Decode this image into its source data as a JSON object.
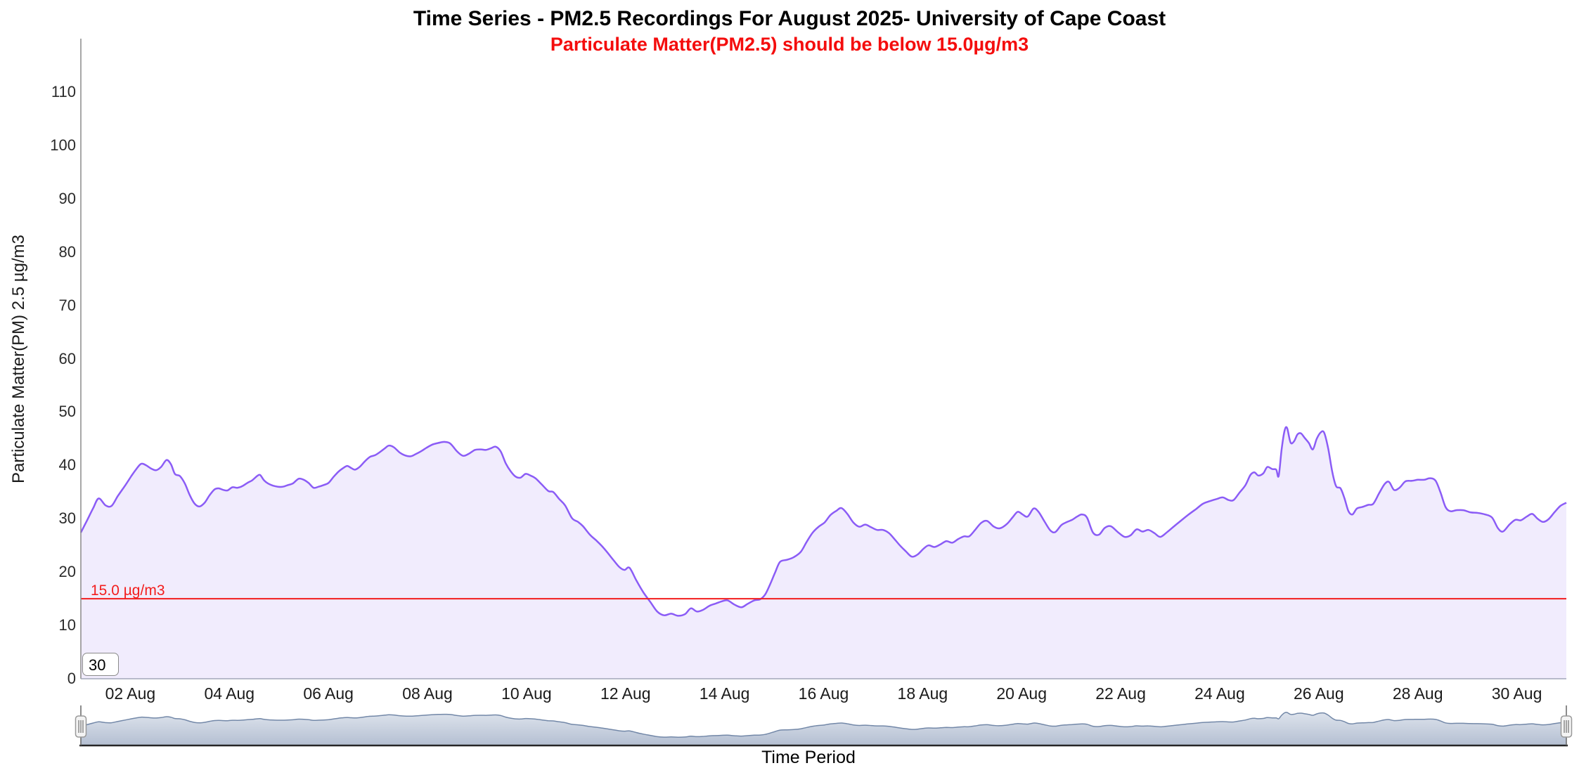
{
  "chart_data": {
    "type": "area",
    "title": "Time Series - PM2.5 Recordings For August 2025- University of Cape Coast",
    "subtitle": "Particulate Matter(PM2.5) should be below 15.0µg/m3",
    "xlabel": "Time Period",
    "ylabel": "Particulate Matter(PM) 2.5 µg/m3",
    "x_unit": "day of August 2025",
    "ylim": [
      0,
      120
    ],
    "xlim_days": [
      1,
      31
    ],
    "grid": false,
    "legend": "none",
    "yticks": [
      0,
      10,
      20,
      30,
      40,
      50,
      60,
      70,
      80,
      90,
      100,
      110
    ],
    "xticks": [
      {
        "day": 2,
        "label": "02 Aug"
      },
      {
        "day": 4,
        "label": "04 Aug"
      },
      {
        "day": 6,
        "label": "06 Aug"
      },
      {
        "day": 8,
        "label": "08 Aug"
      },
      {
        "day": 10,
        "label": "10 Aug"
      },
      {
        "day": 12,
        "label": "12 Aug"
      },
      {
        "day": 14,
        "label": "14 Aug"
      },
      {
        "day": 16,
        "label": "16 Aug"
      },
      {
        "day": 18,
        "label": "18 Aug"
      },
      {
        "day": 20,
        "label": "20 Aug"
      },
      {
        "day": 22,
        "label": "22 Aug"
      },
      {
        "day": 24,
        "label": "24 Aug"
      },
      {
        "day": 26,
        "label": "26 Aug"
      },
      {
        "day": 28,
        "label": "28 Aug"
      },
      {
        "day": 30,
        "label": "30 Aug"
      }
    ],
    "plotline": {
      "value": 15.0,
      "label": "15.0 µg/m3"
    },
    "series": [
      {
        "name": "PM2.5",
        "points": [
          [
            1.0,
            27.4
          ],
          [
            1.12,
            29.6
          ],
          [
            1.25,
            32.0
          ],
          [
            1.36,
            33.8
          ],
          [
            1.5,
            32.5
          ],
          [
            1.62,
            32.4
          ],
          [
            1.75,
            34.3
          ],
          [
            1.9,
            36.3
          ],
          [
            2.02,
            38.0
          ],
          [
            2.12,
            39.3
          ],
          [
            2.22,
            40.3
          ],
          [
            2.32,
            40.0
          ],
          [
            2.42,
            39.4
          ],
          [
            2.52,
            39.1
          ],
          [
            2.62,
            39.7
          ],
          [
            2.73,
            41.0
          ],
          [
            2.82,
            40.2
          ],
          [
            2.9,
            38.4
          ],
          [
            3.0,
            38.0
          ],
          [
            3.1,
            36.6
          ],
          [
            3.2,
            34.4
          ],
          [
            3.3,
            32.8
          ],
          [
            3.4,
            32.3
          ],
          [
            3.5,
            33.0
          ],
          [
            3.6,
            34.4
          ],
          [
            3.7,
            35.5
          ],
          [
            3.78,
            35.7
          ],
          [
            3.88,
            35.4
          ],
          [
            3.96,
            35.3
          ],
          [
            4.06,
            35.9
          ],
          [
            4.16,
            35.8
          ],
          [
            4.26,
            36.1
          ],
          [
            4.36,
            36.7
          ],
          [
            4.46,
            37.2
          ],
          [
            4.56,
            38.0
          ],
          [
            4.62,
            38.2
          ],
          [
            4.7,
            37.2
          ],
          [
            4.78,
            36.6
          ],
          [
            4.88,
            36.2
          ],
          [
            4.98,
            36.0
          ],
          [
            5.08,
            36.0
          ],
          [
            5.18,
            36.3
          ],
          [
            5.28,
            36.6
          ],
          [
            5.4,
            37.5
          ],
          [
            5.5,
            37.3
          ],
          [
            5.6,
            36.7
          ],
          [
            5.7,
            35.8
          ],
          [
            5.8,
            36.0
          ],
          [
            5.9,
            36.3
          ],
          [
            6.0,
            36.7
          ],
          [
            6.1,
            37.8
          ],
          [
            6.2,
            38.8
          ],
          [
            6.3,
            39.5
          ],
          [
            6.38,
            39.9
          ],
          [
            6.46,
            39.5
          ],
          [
            6.54,
            39.2
          ],
          [
            6.64,
            39.8
          ],
          [
            6.74,
            40.8
          ],
          [
            6.84,
            41.6
          ],
          [
            6.94,
            41.9
          ],
          [
            7.04,
            42.5
          ],
          [
            7.14,
            43.2
          ],
          [
            7.22,
            43.7
          ],
          [
            7.32,
            43.4
          ],
          [
            7.44,
            42.4
          ],
          [
            7.54,
            41.9
          ],
          [
            7.66,
            41.7
          ],
          [
            7.76,
            42.1
          ],
          [
            7.88,
            42.7
          ],
          [
            7.98,
            43.3
          ],
          [
            8.1,
            43.9
          ],
          [
            8.22,
            44.2
          ],
          [
            8.34,
            44.4
          ],
          [
            8.46,
            44.1
          ],
          [
            8.6,
            42.6
          ],
          [
            8.72,
            41.8
          ],
          [
            8.84,
            42.2
          ],
          [
            8.96,
            42.9
          ],
          [
            9.08,
            43.0
          ],
          [
            9.18,
            42.9
          ],
          [
            9.28,
            43.2
          ],
          [
            9.38,
            43.5
          ],
          [
            9.48,
            42.6
          ],
          [
            9.58,
            40.4
          ],
          [
            9.68,
            38.9
          ],
          [
            9.78,
            37.9
          ],
          [
            9.88,
            37.7
          ],
          [
            9.98,
            38.4
          ],
          [
            10.08,
            38.1
          ],
          [
            10.18,
            37.6
          ],
          [
            10.3,
            36.5
          ],
          [
            10.44,
            35.2
          ],
          [
            10.54,
            35.0
          ],
          [
            10.66,
            33.7
          ],
          [
            10.78,
            32.5
          ],
          [
            10.92,
            30.1
          ],
          [
            11.04,
            29.4
          ],
          [
            11.14,
            28.6
          ],
          [
            11.28,
            27.0
          ],
          [
            11.4,
            26.0
          ],
          [
            11.52,
            24.9
          ],
          [
            11.64,
            23.6
          ],
          [
            11.76,
            22.2
          ],
          [
            11.88,
            20.9
          ],
          [
            11.98,
            20.4
          ],
          [
            12.08,
            20.8
          ],
          [
            12.22,
            18.4
          ],
          [
            12.36,
            16.2
          ],
          [
            12.5,
            14.4
          ],
          [
            12.64,
            12.6
          ],
          [
            12.78,
            11.9
          ],
          [
            12.92,
            12.2
          ],
          [
            13.06,
            11.8
          ],
          [
            13.2,
            12.1
          ],
          [
            13.32,
            13.2
          ],
          [
            13.44,
            12.6
          ],
          [
            13.56,
            12.9
          ],
          [
            13.7,
            13.7
          ],
          [
            13.82,
            14.1
          ],
          [
            13.94,
            14.5
          ],
          [
            14.06,
            14.7
          ],
          [
            14.2,
            13.9
          ],
          [
            14.34,
            13.4
          ],
          [
            14.46,
            14.0
          ],
          [
            14.6,
            14.7
          ],
          [
            14.72,
            14.9
          ],
          [
            14.82,
            15.8
          ],
          [
            14.92,
            17.7
          ],
          [
            15.02,
            19.9
          ],
          [
            15.12,
            21.9
          ],
          [
            15.26,
            22.3
          ],
          [
            15.4,
            22.8
          ],
          [
            15.54,
            23.8
          ],
          [
            15.66,
            25.7
          ],
          [
            15.78,
            27.4
          ],
          [
            15.9,
            28.5
          ],
          [
            16.02,
            29.3
          ],
          [
            16.14,
            30.7
          ],
          [
            16.26,
            31.5
          ],
          [
            16.36,
            32.0
          ],
          [
            16.48,
            30.9
          ],
          [
            16.6,
            29.3
          ],
          [
            16.72,
            28.5
          ],
          [
            16.84,
            28.9
          ],
          [
            16.96,
            28.4
          ],
          [
            17.08,
            27.9
          ],
          [
            17.2,
            27.9
          ],
          [
            17.32,
            27.3
          ],
          [
            17.44,
            26.1
          ],
          [
            17.54,
            25.0
          ],
          [
            17.66,
            23.9
          ],
          [
            17.78,
            22.9
          ],
          [
            17.9,
            23.3
          ],
          [
            18.02,
            24.4
          ],
          [
            18.12,
            25.0
          ],
          [
            18.24,
            24.7
          ],
          [
            18.36,
            25.2
          ],
          [
            18.48,
            25.8
          ],
          [
            18.6,
            25.5
          ],
          [
            18.72,
            26.2
          ],
          [
            18.84,
            26.7
          ],
          [
            18.94,
            26.7
          ],
          [
            19.06,
            27.9
          ],
          [
            19.18,
            29.2
          ],
          [
            19.3,
            29.6
          ],
          [
            19.44,
            28.5
          ],
          [
            19.56,
            28.2
          ],
          [
            19.7,
            29.0
          ],
          [
            19.82,
            30.3
          ],
          [
            19.92,
            31.3
          ],
          [
            20.02,
            30.8
          ],
          [
            20.12,
            30.4
          ],
          [
            20.24,
            31.9
          ],
          [
            20.34,
            31.3
          ],
          [
            20.46,
            29.5
          ],
          [
            20.58,
            27.8
          ],
          [
            20.68,
            27.5
          ],
          [
            20.8,
            28.8
          ],
          [
            20.92,
            29.4
          ],
          [
            21.02,
            29.8
          ],
          [
            21.12,
            30.4
          ],
          [
            21.22,
            30.8
          ],
          [
            21.32,
            30.2
          ],
          [
            21.44,
            27.4
          ],
          [
            21.56,
            27.0
          ],
          [
            21.68,
            28.3
          ],
          [
            21.8,
            28.6
          ],
          [
            21.94,
            27.5
          ],
          [
            22.08,
            26.6
          ],
          [
            22.2,
            26.9
          ],
          [
            22.32,
            28.0
          ],
          [
            22.44,
            27.6
          ],
          [
            22.56,
            27.9
          ],
          [
            22.68,
            27.3
          ],
          [
            22.8,
            26.6
          ],
          [
            22.94,
            27.5
          ],
          [
            23.08,
            28.6
          ],
          [
            23.2,
            29.5
          ],
          [
            23.36,
            30.7
          ],
          [
            23.52,
            31.8
          ],
          [
            23.66,
            32.8
          ],
          [
            23.8,
            33.3
          ],
          [
            23.94,
            33.7
          ],
          [
            24.06,
            34.0
          ],
          [
            24.18,
            33.5
          ],
          [
            24.28,
            33.5
          ],
          [
            24.4,
            34.9
          ],
          [
            24.52,
            36.3
          ],
          [
            24.62,
            38.2
          ],
          [
            24.7,
            38.7
          ],
          [
            24.78,
            38.1
          ],
          [
            24.88,
            38.5
          ],
          [
            24.96,
            39.7
          ],
          [
            25.06,
            39.3
          ],
          [
            25.14,
            39.2
          ],
          [
            25.19,
            38.0
          ],
          [
            25.25,
            43.0
          ],
          [
            25.31,
            46.5
          ],
          [
            25.36,
            47.0
          ],
          [
            25.43,
            44.3
          ],
          [
            25.5,
            44.5
          ],
          [
            25.57,
            45.8
          ],
          [
            25.64,
            46.0
          ],
          [
            25.72,
            45.1
          ],
          [
            25.8,
            44.2
          ],
          [
            25.88,
            43.0
          ],
          [
            25.96,
            45.0
          ],
          [
            26.04,
            46.2
          ],
          [
            26.11,
            46.1
          ],
          [
            26.19,
            43.2
          ],
          [
            26.27,
            38.9
          ],
          [
            26.35,
            36.1
          ],
          [
            26.44,
            35.7
          ],
          [
            26.52,
            33.8
          ],
          [
            26.6,
            31.4
          ],
          [
            26.68,
            30.8
          ],
          [
            26.77,
            31.9
          ],
          [
            26.88,
            32.2
          ],
          [
            27.0,
            32.6
          ],
          [
            27.1,
            32.8
          ],
          [
            27.22,
            34.8
          ],
          [
            27.33,
            36.5
          ],
          [
            27.42,
            36.9
          ],
          [
            27.52,
            35.4
          ],
          [
            27.63,
            35.8
          ],
          [
            27.75,
            37.0
          ],
          [
            27.88,
            37.1
          ],
          [
            28.0,
            37.3
          ],
          [
            28.13,
            37.3
          ],
          [
            28.25,
            37.6
          ],
          [
            28.36,
            37.1
          ],
          [
            28.46,
            34.9
          ],
          [
            28.56,
            32.2
          ],
          [
            28.66,
            31.4
          ],
          [
            28.78,
            31.6
          ],
          [
            28.92,
            31.6
          ],
          [
            29.06,
            31.2
          ],
          [
            29.2,
            31.1
          ],
          [
            29.36,
            30.8
          ],
          [
            29.5,
            30.2
          ],
          [
            29.62,
            28.2
          ],
          [
            29.72,
            27.6
          ],
          [
            29.85,
            28.9
          ],
          [
            29.97,
            29.8
          ],
          [
            30.08,
            29.7
          ],
          [
            30.2,
            30.4
          ],
          [
            30.31,
            30.9
          ],
          [
            30.42,
            30.0
          ],
          [
            30.53,
            29.4
          ],
          [
            30.64,
            29.9
          ],
          [
            30.76,
            31.2
          ],
          [
            30.88,
            32.4
          ],
          [
            31.0,
            33.0
          ]
        ]
      }
    ]
  },
  "controls": {
    "days_input": {
      "value": "30"
    }
  },
  "colors": {
    "series_line": "#8b5cf6",
    "series_fill": "#f1ecfd",
    "plotline": "#f21d1d",
    "subtitle": "#f40d0d",
    "y_axis_line": "#8a8a8a",
    "x_axis_line": "#a3a7ba",
    "navigator_line": "#7388a8",
    "navigator_fill_top": "#dde3ec",
    "navigator_fill_bottom": "#b4bfd2",
    "navigator_axis": "#262626",
    "handle_fill": "#f4f4f4",
    "handle_stroke": "#999999",
    "handle_grip": "#707070"
  }
}
